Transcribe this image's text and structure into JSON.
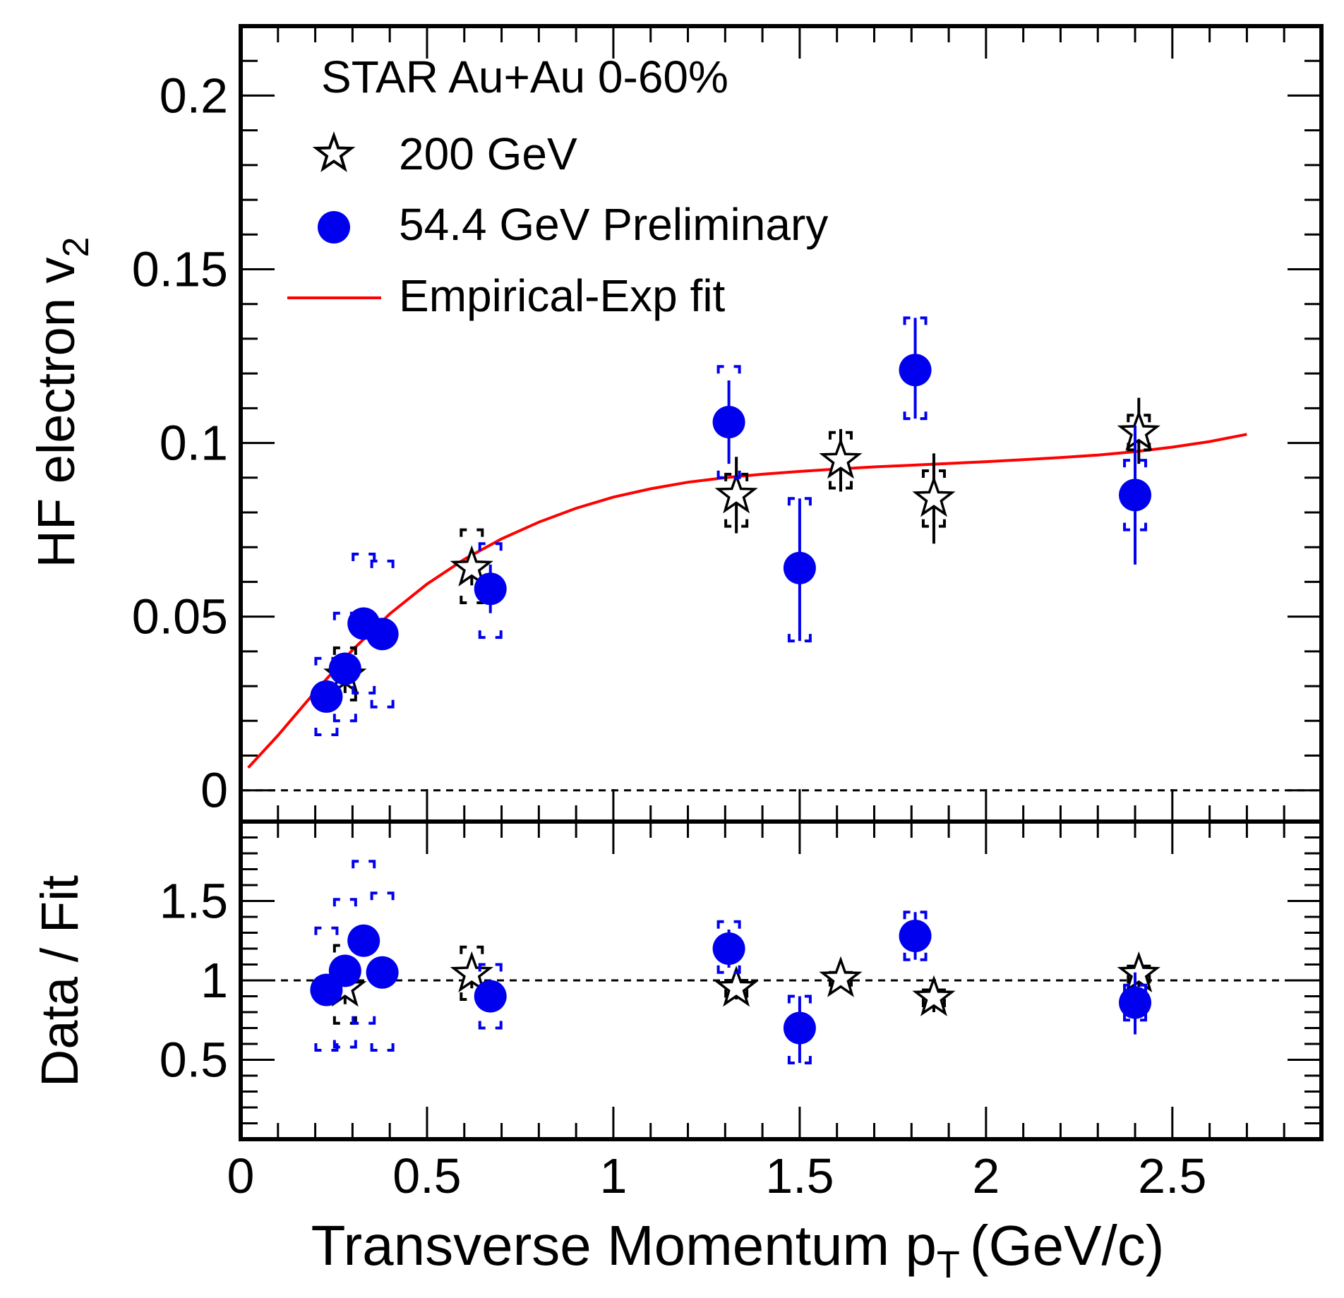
{
  "chart_data": {
    "type": "scatter",
    "x_axis": {
      "label": "Transverse Momentum p",
      "label_sub": "T",
      "label_unit": "(GeV/c)",
      "range": [
        0,
        2.9
      ],
      "ticks": [
        {
          "value": 0,
          "label": "0"
        },
        {
          "value": 0.5,
          "label": "0.5"
        },
        {
          "value": 1,
          "label": "1"
        },
        {
          "value": 1.5,
          "label": "1.5"
        },
        {
          "value": 2,
          "label": "2"
        },
        {
          "value": 2.5,
          "label": "2.5"
        }
      ],
      "minor_step": 0.1
    },
    "panels": [
      {
        "id": "top",
        "ylabel": "HF electron v",
        "ylabel_sub": "2",
        "ylim": [
          -0.009,
          0.22
        ],
        "yticks": [
          {
            "value": 0,
            "label": "0"
          },
          {
            "value": 0.05,
            "label": "0.05"
          },
          {
            "value": 0.1,
            "label": "0.1"
          },
          {
            "value": 0.15,
            "label": "0.15"
          },
          {
            "value": 0.2,
            "label": "0.2"
          }
        ],
        "y_minor_step": 0.01,
        "reference_line": 0,
        "series": [
          {
            "name": "200 GeV",
            "marker": "open-star",
            "color": "#000000",
            "points": [
              {
                "x": 0.28,
                "y": 0.033,
                "stat": [
                  0.028,
                  0.038
                ],
                "sys": [
                  0.026,
                  0.041
                ]
              },
              {
                "x": 0.62,
                "y": 0.064,
                "stat": [
                  0.059,
                  0.069
                ],
                "sys": [
                  0.054,
                  0.075
                ]
              },
              {
                "x": 1.33,
                "y": 0.085,
                "stat": [
                  0.074,
                  0.096
                ],
                "sys": [
                  0.076,
                  0.091
                ]
              },
              {
                "x": 1.61,
                "y": 0.095,
                "stat": [
                  0.086,
                  0.104
                ],
                "sys": [
                  0.087,
                  0.103
                ]
              },
              {
                "x": 1.86,
                "y": 0.084,
                "stat": [
                  0.071,
                  0.097
                ],
                "sys": [
                  0.076,
                  0.092
                ]
              },
              {
                "x": 2.41,
                "y": 0.103,
                "stat": [
                  0.094,
                  0.113
                ],
                "sys": [
                  0.098,
                  0.108
                ]
              }
            ]
          },
          {
            "name": "54.4 GeV Preliminary",
            "marker": "filled-circle",
            "color": "#0000ee",
            "points": [
              {
                "x": 0.23,
                "y": 0.027,
                "stat": [
                  0.024,
                  0.03
                ],
                "sys": [
                  0.016,
                  0.038
                ]
              },
              {
                "x": 0.28,
                "y": 0.035,
                "stat": [
                  0.032,
                  0.038
                ],
                "sys": [
                  0.02,
                  0.051
                ]
              },
              {
                "x": 0.33,
                "y": 0.048,
                "stat": [
                  0.045,
                  0.051
                ],
                "sys": [
                  0.028,
                  0.068
                ]
              },
              {
                "x": 0.38,
                "y": 0.045,
                "stat": [
                  0.042,
                  0.048
                ],
                "sys": [
                  0.024,
                  0.066
                ]
              },
              {
                "x": 0.67,
                "y": 0.058,
                "stat": [
                  0.051,
                  0.065
                ],
                "sys": [
                  0.044,
                  0.071
                ]
              },
              {
                "x": 1.31,
                "y": 0.106,
                "stat": [
                  0.094,
                  0.118
                ],
                "sys": [
                  0.09,
                  0.122
                ]
              },
              {
                "x": 1.5,
                "y": 0.064,
                "stat": [
                  0.043,
                  0.084
                ],
                "sys": [
                  0.043,
                  0.084
                ]
              },
              {
                "x": 1.81,
                "y": 0.121,
                "stat": [
                  0.107,
                  0.136
                ],
                "sys": [
                  0.107,
                  0.136
                ]
              },
              {
                "x": 2.4,
                "y": 0.085,
                "stat": [
                  0.065,
                  0.105
                ],
                "sys": [
                  0.075,
                  0.095
                ]
              }
            ]
          }
        ],
        "fit": {
          "name": "Empirical-Exp fit",
          "color": "#ff0000",
          "points": [
            [
              0.02,
              0.0065
            ],
            [
              0.1,
              0.0158
            ],
            [
              0.2,
              0.0284
            ],
            [
              0.3,
              0.0404
            ],
            [
              0.4,
              0.0508
            ],
            [
              0.5,
              0.0594
            ],
            [
              0.6,
              0.0665
            ],
            [
              0.7,
              0.0724
            ],
            [
              0.8,
              0.0772
            ],
            [
              0.9,
              0.0812
            ],
            [
              1.0,
              0.0844
            ],
            [
              1.1,
              0.0868
            ],
            [
              1.2,
              0.0887
            ],
            [
              1.3,
              0.09
            ],
            [
              1.4,
              0.091
            ],
            [
              1.5,
              0.0918
            ],
            [
              1.6,
              0.0925
            ],
            [
              1.7,
              0.0931
            ],
            [
              1.8,
              0.0936
            ],
            [
              1.9,
              0.0941
            ],
            [
              2.0,
              0.0946
            ],
            [
              2.1,
              0.0952
            ],
            [
              2.2,
              0.0958
            ],
            [
              2.3,
              0.0965
            ],
            [
              2.4,
              0.0975
            ],
            [
              2.5,
              0.0988
            ],
            [
              2.6,
              0.1004
            ],
            [
              2.7,
              0.1025
            ]
          ]
        }
      },
      {
        "id": "bottom",
        "ylabel": "Data / Fit",
        "ylim": [
          0,
          2.0
        ],
        "yticks": [
          {
            "value": 0.5,
            "label": "0.5"
          },
          {
            "value": 1,
            "label": "1"
          },
          {
            "value": 1.5,
            "label": "1.5"
          }
        ],
        "y_minor_step": 0.1,
        "reference_line": 1,
        "series": [
          {
            "name": "200 GeV",
            "marker": "open-star",
            "color": "#000000",
            "points": [
              {
                "x": 0.28,
                "y": 0.95,
                "stat": [
                  0.85,
                  1.05
                ],
                "sys": [
                  0.73,
                  1.22
                ]
              },
              {
                "x": 0.62,
                "y": 1.04,
                "stat": [
                  0.95,
                  1.13
                ],
                "sys": [
                  0.88,
                  1.21
                ]
              },
              {
                "x": 1.33,
                "y": 0.95,
                "stat": [
                  0.88,
                  1.02
                ],
                "sys": [
                  0.9,
                  1.0
                ]
              },
              {
                "x": 1.61,
                "y": 1.01,
                "stat": [
                  0.96,
                  1.06
                ],
                "sys": [
                  0.97,
                  1.05
                ]
              },
              {
                "x": 1.86,
                "y": 0.89,
                "stat": [
                  0.8,
                  0.98
                ],
                "sys": [
                  0.84,
                  0.94
                ]
              },
              {
                "x": 2.41,
                "y": 1.04,
                "stat": [
                  0.96,
                  1.12
                ],
                "sys": [
                  0.99,
                  1.09
                ]
              }
            ]
          },
          {
            "name": "54.4 GeV Preliminary",
            "marker": "filled-circle",
            "color": "#0000ee",
            "points": [
              {
                "x": 0.23,
                "y": 0.94,
                "stat": [
                  0.9,
                  0.98
                ],
                "sys": [
                  0.56,
                  1.33
                ]
              },
              {
                "x": 0.28,
                "y": 1.06,
                "stat": [
                  1.01,
                  1.11
                ],
                "sys": [
                  0.58,
                  1.51
                ]
              },
              {
                "x": 0.33,
                "y": 1.25,
                "stat": [
                  1.2,
                  1.3
                ],
                "sys": [
                  0.73,
                  1.75
                ]
              },
              {
                "x": 0.38,
                "y": 1.05,
                "stat": [
                  1.0,
                  1.1
                ],
                "sys": [
                  0.56,
                  1.55
                ]
              },
              {
                "x": 0.67,
                "y": 0.9,
                "stat": [
                  0.8,
                  1.0
                ],
                "sys": [
                  0.7,
                  1.1
                ]
              },
              {
                "x": 1.31,
                "y": 1.2,
                "stat": [
                  1.08,
                  1.32
                ],
                "sys": [
                  1.05,
                  1.37
                ]
              },
              {
                "x": 1.5,
                "y": 0.7,
                "stat": [
                  0.48,
                  0.9
                ],
                "sys": [
                  0.48,
                  0.9
                ]
              },
              {
                "x": 1.81,
                "y": 1.28,
                "stat": [
                  1.13,
                  1.43
                ],
                "sys": [
                  1.13,
                  1.43
                ]
              },
              {
                "x": 2.4,
                "y": 0.86,
                "stat": [
                  0.66,
                  1.05
                ],
                "sys": [
                  0.75,
                  0.97
                ]
              }
            ]
          }
        ]
      }
    ],
    "legend": {
      "position": "top-left",
      "title": "STAR Au+Au 0-60%",
      "entries": [
        {
          "label": "200 GeV",
          "marker": "open-star"
        },
        {
          "label": "54.4 GeV Preliminary",
          "marker": "filled-circle"
        },
        {
          "label": "Empirical-Exp fit",
          "marker": "line"
        }
      ]
    },
    "grid": false
  }
}
